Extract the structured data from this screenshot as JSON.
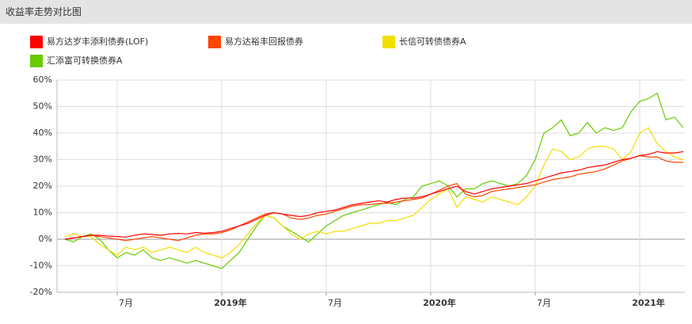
{
  "header": {
    "title": "收益率走势对比图"
  },
  "chart_data": {
    "type": "line",
    "categories": [
      null,
      null,
      null,
      null,
      null,
      null,
      "7月",
      null,
      null,
      null,
      null,
      null,
      null,
      null,
      null,
      null,
      null,
      null,
      "2019年",
      null,
      null,
      null,
      null,
      null,
      null,
      null,
      null,
      null,
      null,
      null,
      "7月",
      null,
      null,
      null,
      null,
      null,
      null,
      null,
      null,
      null,
      null,
      null,
      "2020年",
      null,
      null,
      null,
      null,
      null,
      null,
      null,
      null,
      null,
      null,
      null,
      "7月",
      null,
      null,
      null,
      null,
      null,
      null,
      null,
      null,
      null,
      null,
      null,
      "2021年",
      null,
      null,
      null,
      null,
      null
    ],
    "series": [
      {
        "name": "易方达岁丰添利债券(LOF)",
        "color": "#ff0000",
        "values": [
          0,
          0.5,
          1,
          1.5,
          1.5,
          1.2,
          1,
          0.8,
          1.5,
          2,
          1.8,
          1.5,
          2,
          2.2,
          2,
          2.5,
          2.3,
          2.5,
          3,
          4,
          5,
          6,
          7.5,
          9,
          10,
          9.5,
          9,
          8.5,
          9,
          10,
          10.5,
          11,
          12,
          13,
          13.5,
          14,
          14.5,
          14,
          15,
          15.5,
          15.5,
          16,
          17,
          18,
          19,
          20,
          18,
          17,
          18,
          19,
          19.5,
          20,
          20.5,
          21,
          22,
          23,
          24,
          25,
          25.5,
          26,
          27,
          27.5,
          28,
          29,
          30,
          30.5,
          31.5,
          32,
          33,
          32.5,
          32.5,
          33
        ]
      },
      {
        "name": "易方达裕丰回报债券",
        "color": "#ff4500",
        "values": [
          0,
          0.5,
          1,
          1.5,
          1,
          0.5,
          0,
          -0.5,
          0,
          0.5,
          1,
          0.5,
          0,
          -0.5,
          0.5,
          1.5,
          2,
          2,
          2.5,
          3.5,
          5,
          6.5,
          8,
          9.5,
          10,
          9.5,
          8,
          7.5,
          8,
          9,
          9.5,
          10.5,
          11.5,
          12.5,
          13,
          13,
          13.5,
          13.5,
          14,
          14.5,
          15,
          15.5,
          17,
          18.5,
          20,
          21,
          17,
          16,
          16.5,
          18,
          18.5,
          19,
          19.5,
          20,
          20.5,
          21.5,
          22.5,
          23,
          23.5,
          24.5,
          25,
          25.5,
          26.5,
          28,
          29.5,
          30.5,
          31.5,
          31,
          31,
          29.5,
          29,
          29
        ]
      },
      {
        "name": "长信可转债债券A",
        "color": "#f2de00",
        "values": [
          1,
          2,
          1,
          1,
          -2,
          -4,
          -6,
          -3,
          -4,
          -3,
          -5,
          -4,
          -3,
          -4,
          -5,
          -3,
          -5,
          -6,
          -7,
          -5,
          -2,
          2,
          6,
          9,
          8,
          5,
          2,
          0,
          2,
          3,
          2,
          3,
          3,
          4,
          5,
          6,
          6,
          7,
          7,
          8,
          9,
          12,
          15,
          17,
          19,
          12,
          16,
          15,
          14,
          16,
          15,
          14,
          13,
          16,
          20,
          28,
          34,
          33,
          30,
          31,
          34,
          35,
          35,
          34,
          30,
          33,
          40,
          42,
          36,
          33,
          31,
          30
        ]
      },
      {
        "name": "汇添富可转换债券A",
        "color": "#66cc00",
        "values": [
          0,
          -1,
          1,
          2,
          0,
          -4,
          -7,
          -5,
          -6,
          -4,
          -7,
          -8,
          -7,
          -8,
          -9,
          -8,
          -9,
          -10,
          -11,
          -8,
          -5,
          0,
          5,
          9,
          8,
          5,
          3,
          1,
          -1,
          2,
          5,
          7,
          9,
          10,
          11,
          12,
          13,
          14,
          13,
          15,
          16,
          20,
          21,
          22,
          20,
          16,
          19,
          19,
          21,
          22,
          21,
          20,
          21,
          24,
          30,
          40,
          42,
          45,
          39,
          40,
          44,
          40,
          42,
          41,
          42,
          48,
          52,
          53,
          55,
          45,
          46,
          42
        ]
      }
    ],
    "ylim": [
      -20,
      60
    ],
    "yticks": [
      {
        "value": -20,
        "label": "-20%"
      },
      {
        "value": -10,
        "label": "-10%"
      },
      {
        "value": 0,
        "label": "0%"
      },
      {
        "value": 10,
        "label": "10%"
      },
      {
        "value": 20,
        "label": "20%"
      },
      {
        "value": 30,
        "label": "30%"
      },
      {
        "value": 40,
        "label": "40%"
      },
      {
        "value": 50,
        "label": "50%"
      },
      {
        "value": 60,
        "label": "60%"
      }
    ],
    "grid": true
  }
}
